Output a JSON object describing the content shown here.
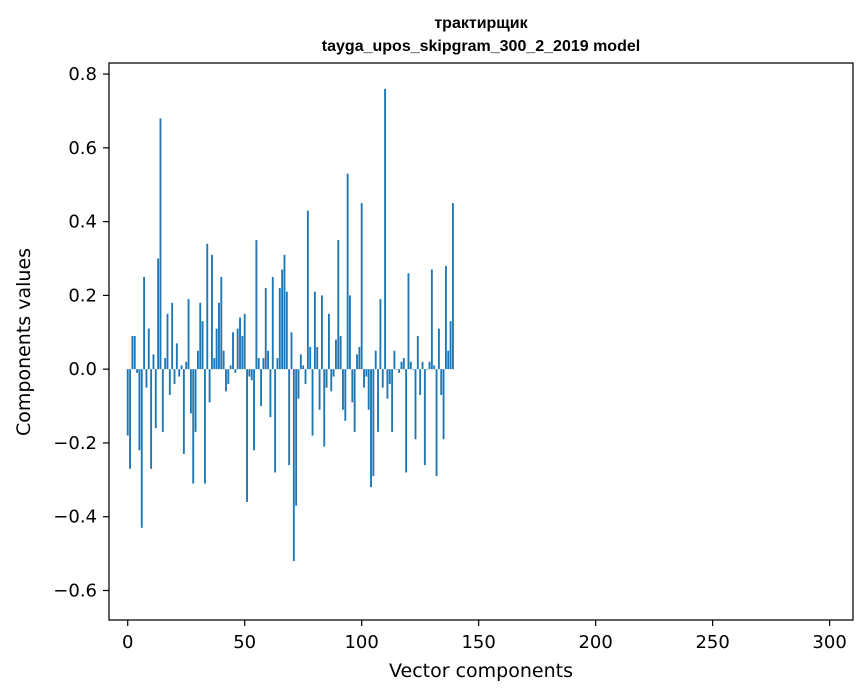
{
  "chart_data": {
    "type": "bar",
    "title": "трактирщик",
    "subtitle": "tayga_upos_skipgram_300_2_2019 model",
    "xlabel": "Vector components",
    "ylabel": "Components values",
    "xlim": [
      -8,
      310
    ],
    "ylim": [
      -0.68,
      0.83
    ],
    "xticks": [
      0,
      50,
      100,
      150,
      200,
      250,
      300
    ],
    "xtick_labels": [
      "0",
      "50",
      "100",
      "150",
      "200",
      "250",
      "300"
    ],
    "yticks": [
      -0.6,
      -0.4,
      -0.2,
      0.0,
      0.2,
      0.4,
      0.6,
      0.8
    ],
    "ytick_labels": [
      "−0.6",
      "−0.4",
      "−0.2",
      "0.0",
      "0.2",
      "0.4",
      "0.6",
      "0.8"
    ],
    "grid": false,
    "bar_color": "#1f77b4",
    "x_start": 0,
    "values": [
      -0.18,
      -0.27,
      0.09,
      0.09,
      -0.01,
      -0.22,
      -0.43,
      0.25,
      -0.05,
      0.11,
      -0.27,
      0.04,
      -0.16,
      0.3,
      0.68,
      -0.17,
      0.03,
      0.15,
      -0.07,
      0.18,
      -0.04,
      0.07,
      -0.02,
      0.01,
      -0.23,
      0.02,
      0.19,
      -0.12,
      -0.31,
      -0.17,
      0.05,
      0.18,
      0.13,
      -0.31,
      0.34,
      -0.09,
      0.31,
      0.03,
      0.11,
      0.18,
      0.25,
      0.05,
      -0.06,
      -0.04,
      0.01,
      0.1,
      -0.01,
      0.11,
      0.14,
      0.09,
      0.15,
      -0.36,
      -0.02,
      -0.03,
      -0.22,
      0.35,
      0.03,
      -0.1,
      0.03,
      0.22,
      0.05,
      -0.13,
      0.25,
      -0.28,
      0.03,
      0.22,
      0.27,
      0.31,
      0.21,
      -0.26,
      0.1,
      -0.52,
      -0.37,
      -0.08,
      0.04,
      0.01,
      -0.04,
      0.43,
      0.06,
      -0.18,
      0.21,
      0.06,
      -0.11,
      0.2,
      -0.21,
      -0.05,
      0.15,
      -0.06,
      -0.02,
      0.08,
      0.35,
      0.09,
      -0.11,
      -0.14,
      0.53,
      0.2,
      -0.09,
      -0.17,
      0.04,
      0.06,
      0.45,
      -0.05,
      -0.02,
      -0.11,
      -0.32,
      -0.29,
      0.05,
      -0.17,
      0.19,
      -0.05,
      0.76,
      -0.08,
      -0.04,
      -0.17,
      0.05,
      0.0,
      -0.01,
      0.02,
      0.03,
      -0.28,
      0.26,
      0.02,
      0.0,
      -0.19,
      0.09,
      -0.07,
      0.02,
      -0.26,
      0.0,
      0.02,
      0.27,
      0.01,
      -0.29,
      0.11,
      -0.07,
      -0.19,
      0.28,
      0.05,
      0.13,
      0.45
    ]
  }
}
